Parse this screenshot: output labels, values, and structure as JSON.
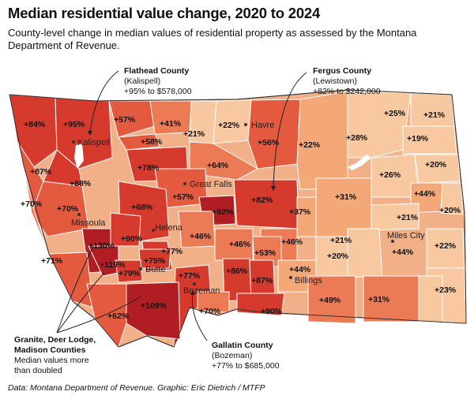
{
  "title": "Median residential value change, 2020 to 2024",
  "subtitle": "County-level change in median values of residential property as assessed by the Montana Department of Revenue.",
  "source": "Data: Montana Department of Revenue. Graphic: Eric Dietrich / MTFP",
  "colors": {
    "c1": "#f8c8a0",
    "c2": "#f5a877",
    "c3": "#ec7b55",
    "c4": "#e35a3f",
    "c5": "#d63a2d",
    "c6": "#b01e23",
    "border": "#ffffff",
    "outline": "#333333"
  },
  "annotations": {
    "flathead": {
      "name": "Flathead County",
      "city": "(Kalispell)",
      "value": "+95% to $578,000"
    },
    "fergus": {
      "name": "Fergus County",
      "city": "(Lewistown)",
      "value": "+82% to $242,000"
    },
    "granite": {
      "line1": "Granite, Deer Lodge,",
      "line2": "Madison Counties",
      "line3": "Median values more",
      "line4": "than doubled"
    },
    "gallatin": {
      "name": "Gallatin County",
      "city": "(Bozeman)",
      "value": "+77% to $685,000"
    }
  },
  "counties": [
    {
      "label": "+84%",
      "pct": 84
    },
    {
      "label": "+95%",
      "pct": 95
    },
    {
      "label": "+57%",
      "pct": 57
    },
    {
      "label": "+41%",
      "pct": 41
    },
    {
      "label": "+22%",
      "pct": 22
    },
    {
      "label": "+56%",
      "pct": 56
    },
    {
      "label": "+25%",
      "pct": 25
    },
    {
      "label": "+21%",
      "pct": 21
    },
    {
      "label": "+58%",
      "pct": 58
    },
    {
      "label": "+21%",
      "pct": 21
    },
    {
      "label": "+22%",
      "pct": 22
    },
    {
      "label": "+28%",
      "pct": 28
    },
    {
      "label": "+19%",
      "pct": 19
    },
    {
      "label": "+87%",
      "pct": 87
    },
    {
      "label": "+78%",
      "pct": 78
    },
    {
      "label": "+64%",
      "pct": 64
    },
    {
      "label": "+20%",
      "pct": 20
    },
    {
      "label": "+88%",
      "pct": 88
    },
    {
      "label": "+26%",
      "pct": 26
    },
    {
      "label": "+57%",
      "pct": 57
    },
    {
      "label": "+44%",
      "pct": 44
    },
    {
      "label": "+70%",
      "pct": 70
    },
    {
      "label": "+68%",
      "pct": 68
    },
    {
      "label": "+92%",
      "pct": 92
    },
    {
      "label": "+82%",
      "pct": 82
    },
    {
      "label": "+31%",
      "pct": 31
    },
    {
      "label": "+70%",
      "pct": 70
    },
    {
      "label": "+37%",
      "pct": 37
    },
    {
      "label": "+21%",
      "pct": 21
    },
    {
      "label": "+20%",
      "pct": 20
    },
    {
      "label": "+46%",
      "pct": 46
    },
    {
      "label": "+130%",
      "pct": 130
    },
    {
      "label": "+90%",
      "pct": 90
    },
    {
      "label": "+46%",
      "pct": 46
    },
    {
      "label": "+46%",
      "pct": 46
    },
    {
      "label": "+21%",
      "pct": 21
    },
    {
      "label": "+22%",
      "pct": 22
    },
    {
      "label": "+77%",
      "pct": 77
    },
    {
      "label": "+53%",
      "pct": 53
    },
    {
      "label": "+44%",
      "pct": 44
    },
    {
      "label": "+71%",
      "pct": 71
    },
    {
      "label": "+119%",
      "pct": 119
    },
    {
      "label": "+75%",
      "pct": 75
    },
    {
      "label": "+20%",
      "pct": 20
    },
    {
      "label": "+79%",
      "pct": 79
    },
    {
      "label": "+77%",
      "pct": 77
    },
    {
      "label": "+86%",
      "pct": 86
    },
    {
      "label": "+87%",
      "pct": 87
    },
    {
      "label": "+44%",
      "pct": 44
    },
    {
      "label": "+109%",
      "pct": 109
    },
    {
      "label": "+49%",
      "pct": 49
    },
    {
      "label": "+31%",
      "pct": 31
    },
    {
      "label": "+23%",
      "pct": 23
    },
    {
      "label": "+62%",
      "pct": 62
    },
    {
      "label": "+70%",
      "pct": 70
    },
    {
      "label": "+90%",
      "pct": 90
    }
  ],
  "cities": [
    "Kalispell",
    "Havre",
    "Great Falls",
    "Missoula",
    "Helena",
    "Butte",
    "Bozeman",
    "Billings",
    "Miles City"
  ]
}
